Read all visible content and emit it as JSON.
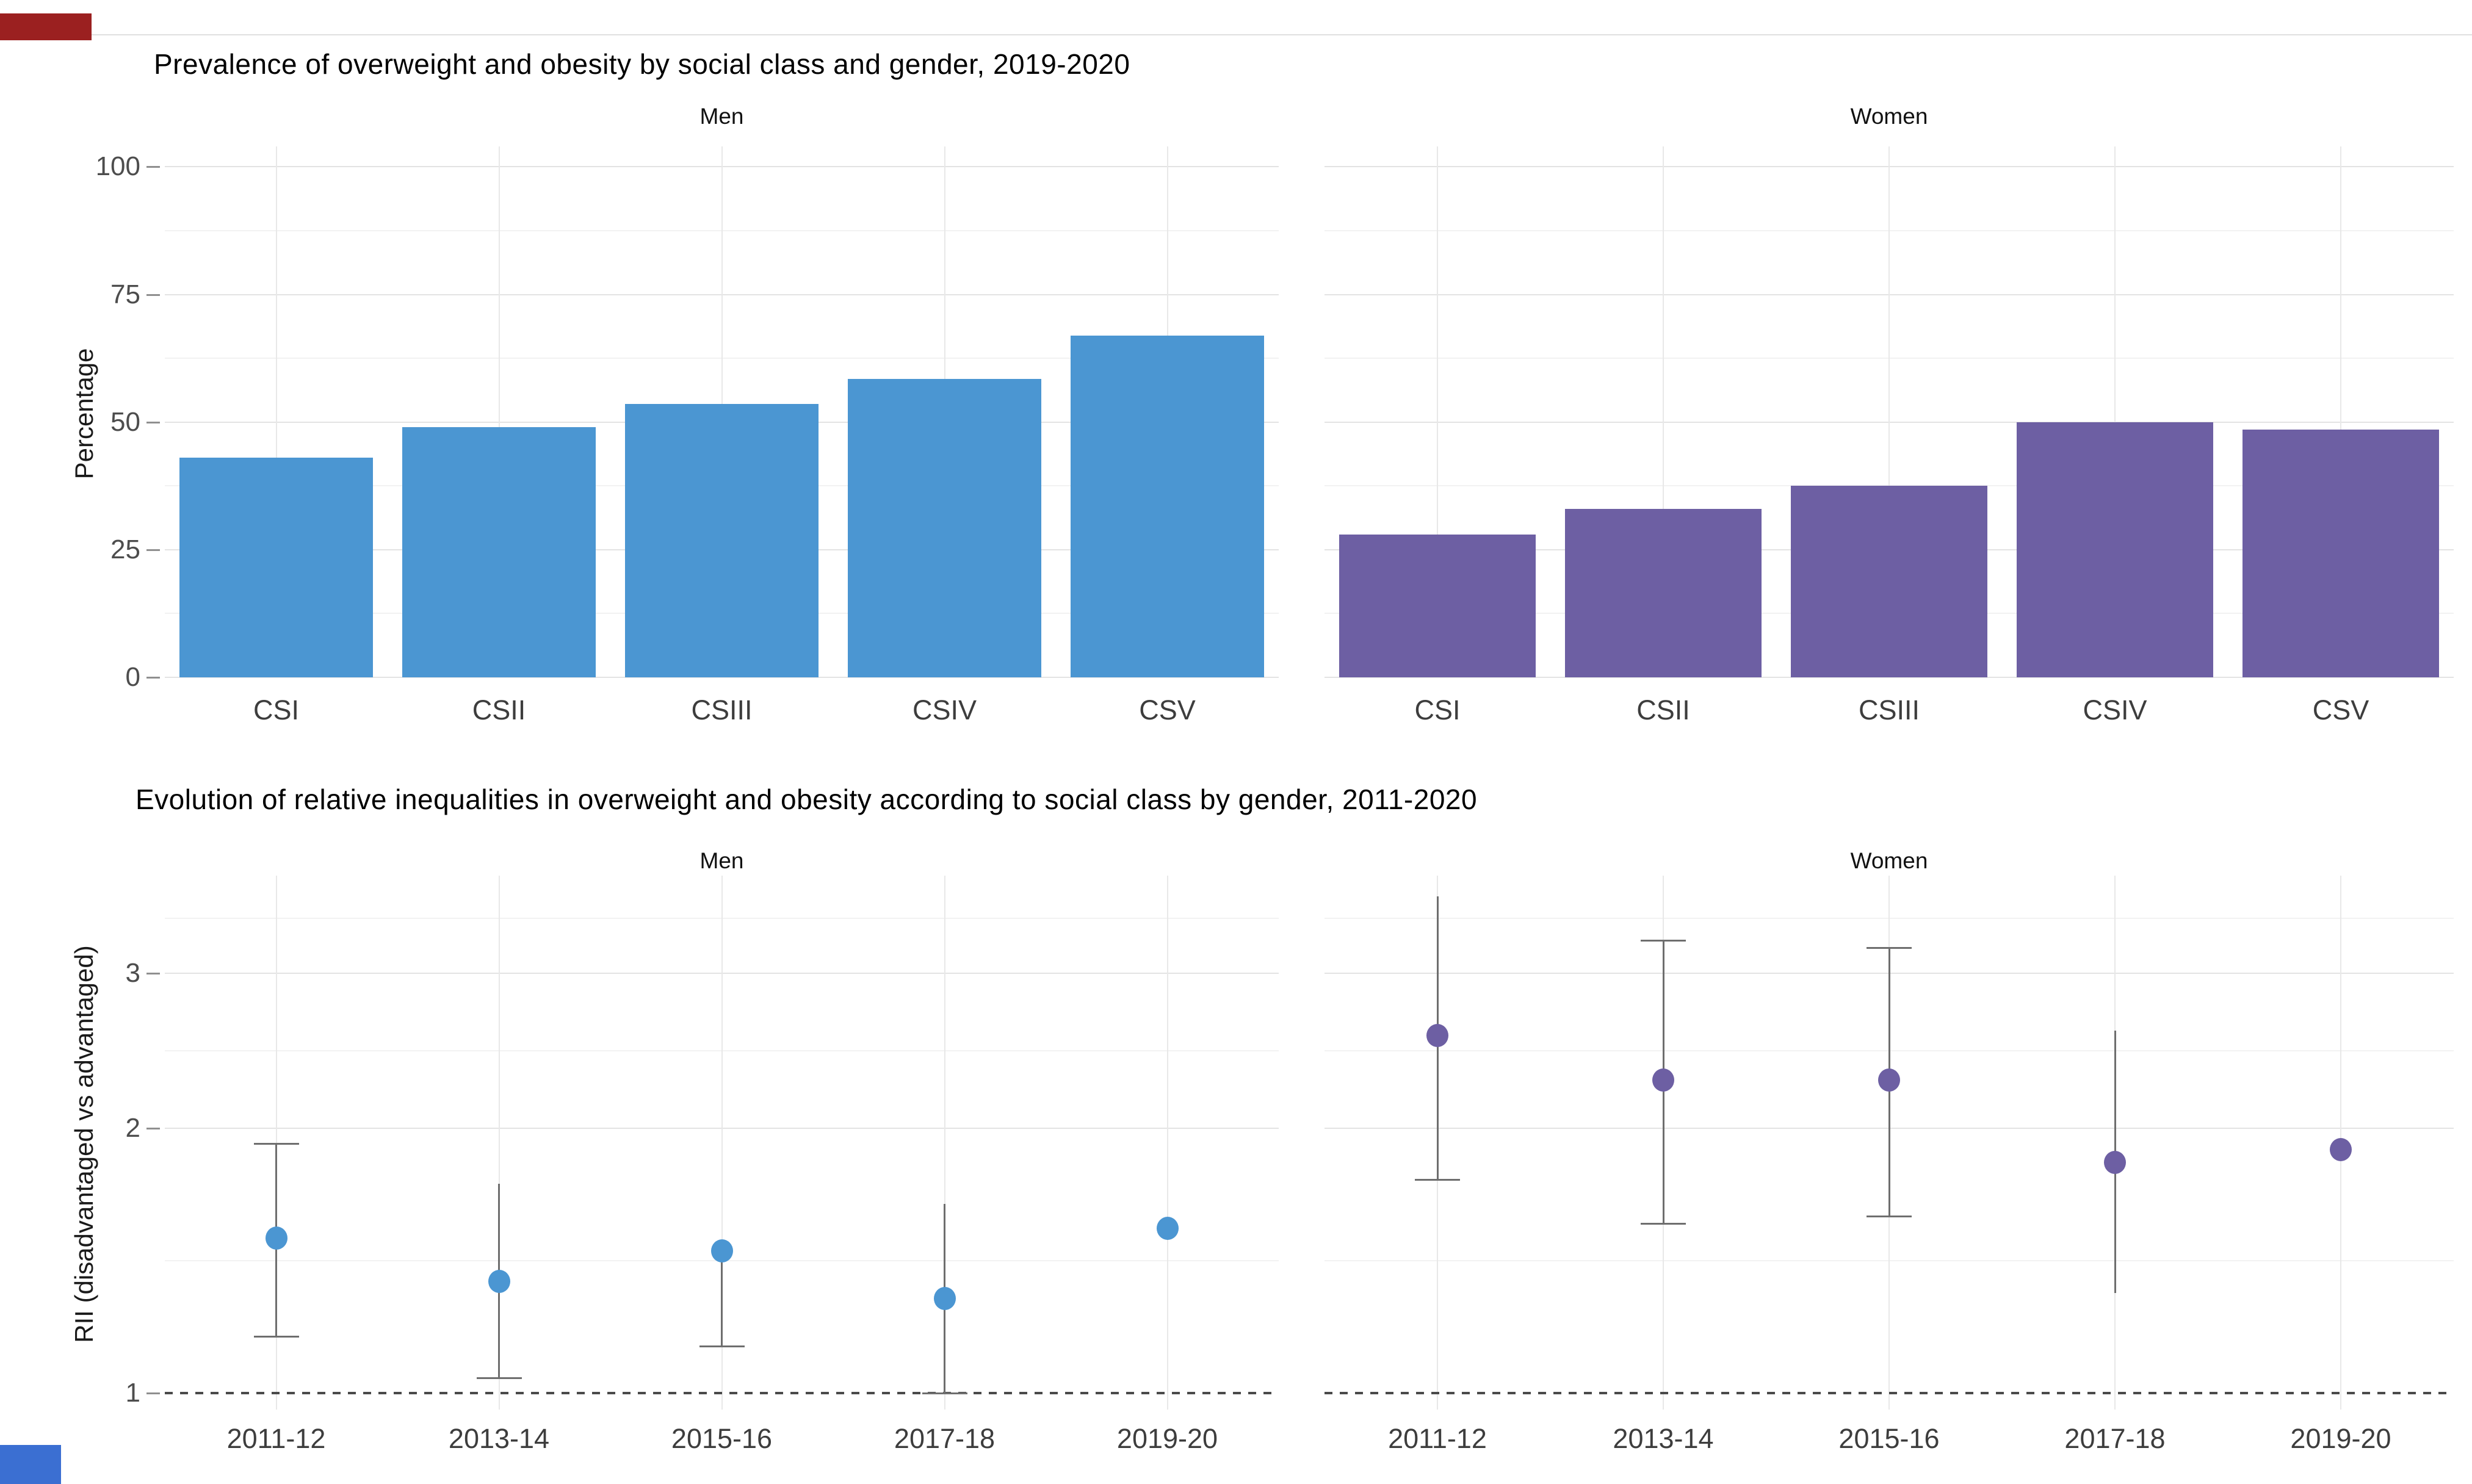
{
  "window": {
    "background": "#ffffff"
  },
  "artifacts": {
    "top_left_bar_color": "#9b2020",
    "bottom_left_bar_color": "#3b6fd2",
    "top_divider_color": "#e0e0e0"
  },
  "chart_data": [
    {
      "type": "bar",
      "title": "Prevalence of overweight and obesity by social class and gender, 2019-2020",
      "xlabel": "",
      "ylabel": "Percentage",
      "ylim": [
        0,
        104
      ],
      "yticks": [
        0,
        25,
        50,
        75,
        100
      ],
      "ytick_labels": [
        "0",
        "25",
        "50",
        "75",
        "100"
      ],
      "minor_gridlines": [
        12.5,
        37.5,
        62.5,
        87.5
      ],
      "categories": [
        "CSI",
        "CSII",
        "CSIII",
        "CSIV",
        "CSV"
      ],
      "legend": "none",
      "grid": true,
      "facets": [
        {
          "label": "Men",
          "color": "#4b96d2",
          "values": [
            43,
            49,
            53.5,
            58.5,
            67
          ]
        },
        {
          "label": "Women",
          "color": "#6d5fa3",
          "values": [
            28,
            33,
            37.5,
            50,
            48.5
          ]
        }
      ]
    },
    {
      "type": "scatter",
      "title": "Evolution of relative inequalities in overweight and obesity according to social class by gender, 2011-2020",
      "xlabel": "",
      "ylabel": "RII (disadvantaged vs advantaged)",
      "yscale": "log",
      "ylim": [
        0.96,
        3.88
      ],
      "yticks": [
        1,
        2,
        3
      ],
      "ytick_labels": [
        "1",
        "2",
        "3"
      ],
      "minor_gridlines": [
        1.414,
        2.449,
        3.464
      ],
      "reference_line": 1,
      "reference_line_style": "dashed",
      "categories": [
        "2011-12",
        "2013-14",
        "2015-16",
        "2017-18",
        "2019-20"
      ],
      "errorbar_color": "#6e6e6e",
      "legend": "none",
      "grid": true,
      "facets": [
        {
          "label": "Men",
          "color": "#4b96d2",
          "points": [
            {
              "x": "2011-12",
              "y": 1.5,
              "lo": 1.16,
              "hi": 1.92,
              "cap_lo": true,
              "cap_hi": true
            },
            {
              "x": "2013-14",
              "y": 1.34,
              "lo": 1.04,
              "hi": 1.73,
              "cap_lo": true,
              "cap_hi": false
            },
            {
              "x": "2015-16",
              "y": 1.45,
              "lo": 1.13,
              "hi": 1.45,
              "cap_lo": true,
              "cap_hi": false
            },
            {
              "x": "2017-18",
              "y": 1.28,
              "lo": 1.0,
              "hi": 1.64,
              "cap_lo": true,
              "cap_hi": false
            },
            {
              "x": "2019-20",
              "y": 1.54,
              "lo": null,
              "hi": null,
              "cap_lo": false,
              "cap_hi": false
            }
          ]
        },
        {
          "label": "Women",
          "color": "#6d5fa3",
          "points": [
            {
              "x": "2011-12",
              "y": 2.55,
              "lo": 1.75,
              "hi": 3.67,
              "cap_lo": true,
              "cap_hi": false
            },
            {
              "x": "2013-14",
              "y": 2.27,
              "lo": 1.56,
              "hi": 3.27,
              "cap_lo": true,
              "cap_hi": true
            },
            {
              "x": "2015-16",
              "y": 2.27,
              "lo": 1.59,
              "hi": 3.21,
              "cap_lo": true,
              "cap_hi": true
            },
            {
              "x": "2017-18",
              "y": 1.83,
              "lo": 1.3,
              "hi": 2.58,
              "cap_lo": false,
              "cap_hi": false
            },
            {
              "x": "2019-20",
              "y": 1.89,
              "lo": null,
              "hi": null,
              "cap_lo": false,
              "cap_hi": false
            }
          ]
        }
      ]
    }
  ]
}
